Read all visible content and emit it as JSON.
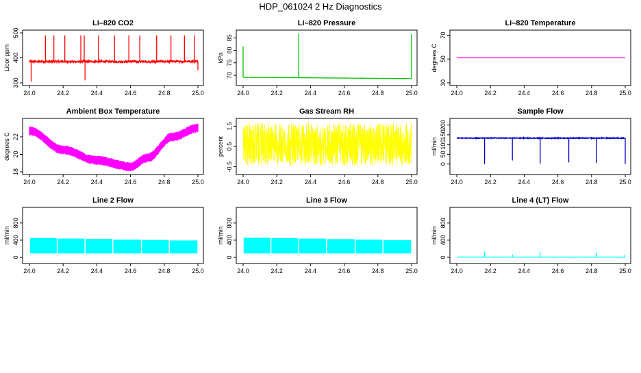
{
  "page": {
    "title": "HDP_061024  2 Hz Diagnostics"
  },
  "x_axis": {
    "ticks": [
      24.0,
      24.2,
      24.4,
      24.6,
      24.8,
      25.0
    ],
    "tick_labels": [
      "24.0",
      "24.2",
      "24.4",
      "24.6",
      "24.8",
      "25.0"
    ],
    "xlim": [
      24.0,
      25.0
    ]
  },
  "chart_data": [
    {
      "id": "co2",
      "type": "line",
      "title": "Li–820 CO2",
      "ylabel": "Licor ppm",
      "ylim": [
        300,
        500
      ],
      "yticks": [
        300,
        400,
        500
      ],
      "yticklabels": [
        "300",
        "400",
        "500"
      ],
      "color": "#ff0000",
      "style": "spiky",
      "series": [
        {
          "name": "CO2",
          "baseline": 385,
          "noise": 4
        }
      ],
      "spikes": [
        {
          "x": 24.095,
          "y": 490
        },
        {
          "x": 24.145,
          "y": 490
        },
        {
          "x": 24.21,
          "y": 490
        },
        {
          "x": 24.305,
          "y": 490
        },
        {
          "x": 24.325,
          "y": 490
        },
        {
          "x": 24.41,
          "y": 490
        },
        {
          "x": 24.505,
          "y": 490
        },
        {
          "x": 24.59,
          "y": 490
        },
        {
          "x": 24.655,
          "y": 490
        },
        {
          "x": 24.755,
          "y": 490
        },
        {
          "x": 24.84,
          "y": 490
        },
        {
          "x": 24.92,
          "y": 490
        },
        {
          "x": 24.98,
          "y": 490
        },
        {
          "x": 24.01,
          "y": 305
        },
        {
          "x": 24.33,
          "y": 310
        },
        {
          "x": 25.0,
          "y": 350
        }
      ]
    },
    {
      "id": "pressure",
      "type": "line",
      "title": "Li–820 Pressure",
      "ylabel": "kPa",
      "ylim": [
        67,
        87
      ],
      "yticks": [
        70,
        75,
        80,
        85
      ],
      "yticklabels": [
        "70",
        "75",
        "80",
        "85"
      ],
      "color": "#00c000",
      "style": "step",
      "series": [
        {
          "name": "Pressure",
          "start": 69.2,
          "end": 68.7
        }
      ],
      "spikes": [
        {
          "x": 24.0,
          "y": 81.5
        },
        {
          "x": 24.33,
          "y": 86.8
        },
        {
          "x": 25.0,
          "y": 86.5
        }
      ]
    },
    {
      "id": "temperature",
      "type": "line",
      "title": "Li–820 Temperature",
      "ylabel": "degrees C",
      "ylim": [
        30,
        72
      ],
      "yticks": [
        30,
        50,
        70
      ],
      "yticklabels": [
        "30",
        "50",
        "70"
      ],
      "color": "#ff00ff",
      "style": "flat",
      "series": [
        {
          "name": "Temperature",
          "baseline": 51
        }
      ]
    },
    {
      "id": "ambient",
      "type": "line",
      "title": "Ambient Box Temperature",
      "ylabel": "degrees C",
      "ylim": [
        18,
        23.8
      ],
      "yticks": [
        18,
        20,
        22
      ],
      "yticklabels": [
        "18",
        "20",
        "22"
      ],
      "color": "#ff00ff",
      "style": "band",
      "series": [
        {
          "name": "Ambient",
          "points": [
            [
              24.0,
              22.7
            ],
            [
              24.2,
              20.5
            ],
            [
              24.4,
              19.3
            ],
            [
              24.6,
              18.6
            ],
            [
              24.7,
              19.6
            ],
            [
              24.85,
              22.0
            ],
            [
              25.0,
              23.0
            ]
          ],
          "band": 0.55
        }
      ]
    },
    {
      "id": "rh",
      "type": "line",
      "title": "Gas Stream RH",
      "ylabel": "percent",
      "ylim": [
        -0.75,
        1.75
      ],
      "yticks": [
        -0.5,
        0.5,
        1.5
      ],
      "yticklabels": [
        "-0.5",
        "0.5",
        "1.5"
      ],
      "color": "#ffff00",
      "style": "noise",
      "series": [
        {
          "name": "RH",
          "baseline": 0.6,
          "low": -0.45,
          "high": 1.65
        }
      ]
    },
    {
      "id": "sample",
      "type": "line",
      "title": "Sample Flow",
      "ylabel": "ml/min",
      "ylim": [
        -40,
        220
      ],
      "yticks": [
        0,
        50,
        100,
        150,
        200
      ],
      "yticklabels": [
        "0",
        "50",
        "100",
        "150",
        "200"
      ],
      "color": "#0000cc",
      "style": "spiky",
      "series": [
        {
          "name": "Sample Flow",
          "baseline": 133,
          "noise": 2
        }
      ],
      "spikes": [
        {
          "x": 24.165,
          "y": 0
        },
        {
          "x": 24.33,
          "y": 18
        },
        {
          "x": 24.495,
          "y": 2
        },
        {
          "x": 24.665,
          "y": 8
        },
        {
          "x": 24.83,
          "y": 5
        },
        {
          "x": 25.0,
          "y": 0
        }
      ]
    },
    {
      "id": "line2",
      "type": "line",
      "title": "Line 2 Flow",
      "ylabel": "ml/min",
      "ylim": [
        -80,
        1100
      ],
      "yticks": [
        0,
        400,
        800
      ],
      "yticklabels": [
        "0",
        "400",
        "800"
      ],
      "color": "#00ffff",
      "style": "block",
      "series": [
        {
          "name": "Line 2 Flow",
          "low": 90,
          "high": 450,
          "gaps": [
            24.165,
            24.33,
            24.495,
            24.665,
            24.83
          ]
        }
      ]
    },
    {
      "id": "line3",
      "type": "line",
      "title": "Line 3 Flow",
      "ylabel": "ml/min",
      "ylim": [
        -80,
        1100
      ],
      "yticks": [
        0,
        400,
        800
      ],
      "yticklabels": [
        "0",
        "400",
        "800"
      ],
      "color": "#00ffff",
      "style": "block",
      "series": [
        {
          "name": "Line 3 Flow",
          "low": 90,
          "high": 460,
          "gaps": [
            24.165,
            24.33,
            24.495,
            24.665,
            24.83
          ]
        }
      ]
    },
    {
      "id": "line4",
      "type": "line",
      "title": "Line 4 (LT) Flow",
      "ylabel": "ml/min",
      "ylim": [
        -80,
        1100
      ],
      "yticks": [
        0,
        400,
        800
      ],
      "yticklabels": [
        "0",
        "400",
        "800"
      ],
      "color": "#00ffff",
      "style": "spiky",
      "series": [
        {
          "name": "Line 4 Flow",
          "baseline": 5,
          "noise": 1
        }
      ],
      "spikes": [
        {
          "x": 24.165,
          "y": 140
        },
        {
          "x": 24.33,
          "y": 70
        },
        {
          "x": 24.495,
          "y": 130
        },
        {
          "x": 24.83,
          "y": 110
        },
        {
          "x": 24.995,
          "y": 55
        }
      ]
    }
  ]
}
